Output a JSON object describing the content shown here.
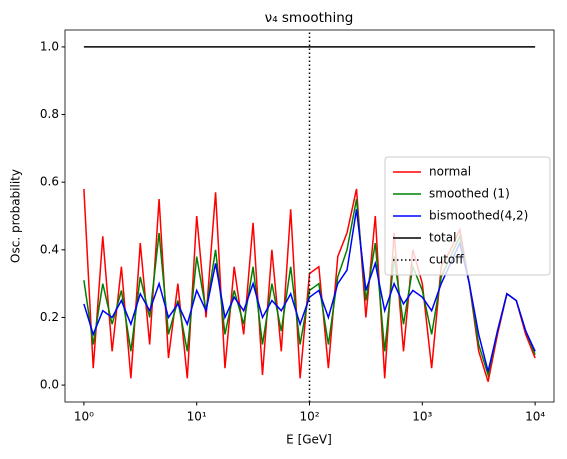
{
  "chart_data": {
    "type": "line",
    "title": "ν₄ smoothing",
    "x_label": "E [GeV]",
    "y_label": "Osc. probability",
    "x_log": true,
    "x": [
      1,
      1.21,
      1.47,
      1.78,
      2.15,
      2.61,
      3.16,
      3.83,
      4.64,
      5.62,
      6.81,
      8.25,
      10,
      12.1,
      14.7,
      17.8,
      21.5,
      26.1,
      31.6,
      38.3,
      46.4,
      56.2,
      68.1,
      82.5,
      100,
      121,
      147,
      178,
      215,
      261,
      316,
      383,
      464,
      562,
      681,
      825,
      1000,
      1210,
      1470,
      1780,
      2150,
      2610,
      3160,
      3830,
      4640,
      5620,
      6810,
      8250,
      10000
    ],
    "series": [
      {
        "name": "normal",
        "color": "#ff0000",
        "values": [
          0.58,
          0.05,
          0.44,
          0.1,
          0.35,
          0.02,
          0.42,
          0.12,
          0.55,
          0.08,
          0.3,
          0.02,
          0.5,
          0.2,
          0.57,
          0.05,
          0.35,
          0.15,
          0.48,
          0.03,
          0.4,
          0.1,
          0.52,
          0.02,
          0.33,
          0.35,
          0.05,
          0.38,
          0.45,
          0.58,
          0.2,
          0.5,
          0.02,
          0.45,
          0.1,
          0.4,
          0.3,
          0.05,
          0.35,
          0.4,
          0.46,
          0.3,
          0.1,
          0.01,
          0.15,
          0.27,
          0.25,
          0.15,
          0.08
        ]
      },
      {
        "name": "smoothed (1)",
        "color": "#008000",
        "values": [
          0.31,
          0.12,
          0.3,
          0.18,
          0.28,
          0.1,
          0.32,
          0.2,
          0.45,
          0.15,
          0.25,
          0.1,
          0.38,
          0.22,
          0.4,
          0.15,
          0.28,
          0.18,
          0.35,
          0.12,
          0.3,
          0.16,
          0.35,
          0.12,
          0.28,
          0.3,
          0.12,
          0.32,
          0.4,
          0.55,
          0.25,
          0.42,
          0.1,
          0.38,
          0.18,
          0.35,
          0.28,
          0.15,
          0.32,
          0.38,
          0.44,
          0.3,
          0.12,
          0.03,
          0.16,
          0.27,
          0.25,
          0.16,
          0.09
        ]
      },
      {
        "name": "bismoothed(4,2)",
        "color": "#0000ff",
        "values": [
          0.24,
          0.15,
          0.22,
          0.2,
          0.25,
          0.18,
          0.27,
          0.22,
          0.3,
          0.2,
          0.24,
          0.18,
          0.28,
          0.22,
          0.36,
          0.2,
          0.26,
          0.22,
          0.3,
          0.2,
          0.25,
          0.22,
          0.27,
          0.18,
          0.26,
          0.28,
          0.2,
          0.3,
          0.34,
          0.52,
          0.28,
          0.36,
          0.22,
          0.3,
          0.24,
          0.28,
          0.26,
          0.22,
          0.3,
          0.36,
          0.42,
          0.3,
          0.15,
          0.04,
          0.16,
          0.27,
          0.25,
          0.16,
          0.1
        ]
      },
      {
        "name": "total",
        "color": "#000000",
        "x": [
          1,
          10000
        ],
        "values": [
          1.0,
          1.0
        ]
      },
      {
        "name": "cutoff",
        "color": "#000000",
        "dash": "dotted",
        "x": [
          100,
          100
        ],
        "values": [
          -0.05,
          1.05
        ]
      }
    ],
    "xlim": [
      0.68,
      14700
    ],
    "ylim": [
      -0.05,
      1.05
    ],
    "xticks": [
      {
        "value": 1,
        "label": "10⁰"
      },
      {
        "value": 10,
        "label": "10¹"
      },
      {
        "value": 100,
        "label": "10²"
      },
      {
        "value": 1000,
        "label": "10³"
      },
      {
        "value": 10000,
        "label": "10⁴"
      }
    ],
    "yticks": [
      {
        "value": 0,
        "label": "0.0"
      },
      0.2,
      0.4,
      0.6,
      0.8,
      {
        "value": 1,
        "label": "1.0"
      }
    ],
    "legend": "center right",
    "grid": false
  }
}
